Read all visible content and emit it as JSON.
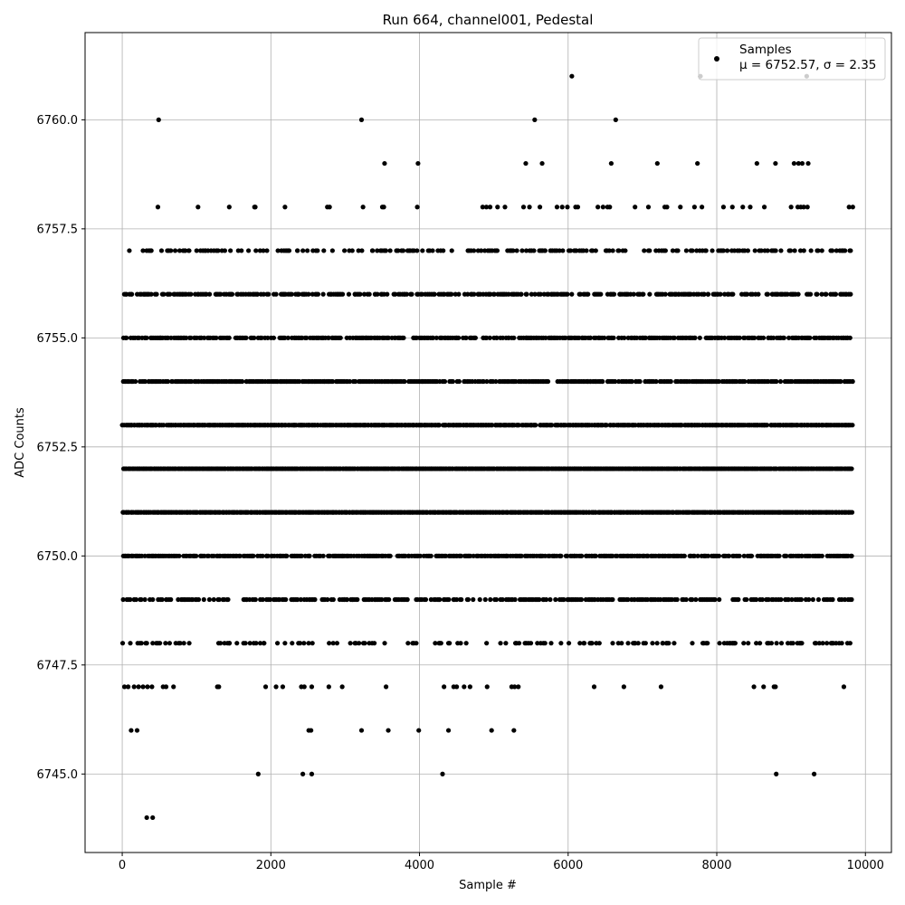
{
  "chart_data": {
    "type": "scatter",
    "title": "Run 664, channel001, Pedestal",
    "xlabel": "Sample #",
    "ylabel": "ADC Counts",
    "xlim": [
      -500,
      10350
    ],
    "ylim": [
      6743.2,
      6762.0
    ],
    "xticks": [
      0,
      2000,
      4000,
      6000,
      8000,
      10000
    ],
    "xtick_labels": [
      "0",
      "2000",
      "4000",
      "6000",
      "8000",
      "10000"
    ],
    "yticks": [
      6745.0,
      6747.5,
      6750.0,
      6752.5,
      6755.0,
      6757.5,
      6760.0
    ],
    "ytick_labels": [
      "6745.0",
      "6747.5",
      "6750.0",
      "6752.5",
      "6755.0",
      "6757.5",
      "6760.0"
    ],
    "grid": true,
    "legend_position": "top-right",
    "series": [
      {
        "name": "Samples",
        "label_line2": "μ = 6752.57, σ = 2.35",
        "color": "#000000",
        "sample_count": 9830,
        "points": [
          [
            330,
            6744
          ],
          [
            410,
            6744
          ],
          [
            1830,
            6745
          ],
          [
            2430,
            6745
          ],
          [
            2550,
            6745
          ],
          [
            4310,
            6745
          ],
          [
            8800,
            6745
          ],
          [
            9310,
            6745
          ],
          [
            120,
            6746
          ],
          [
            200,
            6746
          ],
          [
            2510,
            6746
          ],
          [
            2540,
            6746
          ],
          [
            3220,
            6746
          ],
          [
            3580,
            6746
          ],
          [
            3990,
            6746
          ],
          [
            4390,
            6746
          ],
          [
            4970,
            6746
          ],
          [
            5270,
            6746
          ],
          [
            490,
            6760
          ],
          [
            3220,
            6760
          ],
          [
            5550,
            6760
          ],
          [
            6640,
            6760
          ],
          [
            6050,
            6761
          ],
          [
            7780,
            6761
          ],
          [
            9210,
            6761
          ],
          [
            3530,
            6759
          ],
          [
            3980,
            6759
          ],
          [
            5430,
            6759
          ],
          [
            5650,
            6759
          ],
          [
            6580,
            6759
          ],
          [
            7200,
            6759
          ],
          [
            7740,
            6759
          ],
          [
            8540,
            6759
          ],
          [
            8790,
            6759
          ],
          [
            9040,
            6759
          ],
          [
            9100,
            6759
          ],
          [
            9150,
            6759
          ],
          [
            9230,
            6759
          ],
          [
            30,
            6747
          ],
          [
            80,
            6747
          ],
          [
            160,
            6747
          ],
          [
            220,
            6747
          ],
          [
            280,
            6747
          ],
          [
            340,
            6747
          ],
          [
            400,
            6747
          ],
          [
            550,
            6747
          ],
          [
            590,
            6747
          ],
          [
            690,
            6747
          ],
          [
            1280,
            6747
          ],
          [
            1300,
            6747
          ],
          [
            1930,
            6747
          ],
          [
            2070,
            6747
          ],
          [
            2160,
            6747
          ],
          [
            2410,
            6747
          ],
          [
            2450,
            6747
          ],
          [
            2550,
            6747
          ],
          [
            2780,
            6747
          ],
          [
            2960,
            6747
          ],
          [
            3550,
            6747
          ],
          [
            4330,
            6747
          ],
          [
            4460,
            6747
          ],
          [
            4500,
            6747
          ],
          [
            4600,
            6747
          ],
          [
            4680,
            6747
          ],
          [
            4910,
            6747
          ],
          [
            5240,
            6747
          ],
          [
            5280,
            6747
          ],
          [
            5330,
            6747
          ],
          [
            6350,
            6747
          ],
          [
            6750,
            6747
          ],
          [
            7250,
            6747
          ],
          [
            8500,
            6747
          ],
          [
            8630,
            6747
          ],
          [
            8770,
            6747
          ],
          [
            8790,
            6747
          ],
          [
            9710,
            6747
          ],
          [
            480,
            6758
          ],
          [
            1020,
            6758
          ],
          [
            1440,
            6758
          ],
          [
            1780,
            6758
          ],
          [
            1790,
            6758
          ],
          [
            2190,
            6758
          ],
          [
            2760,
            6758
          ],
          [
            2790,
            6758
          ],
          [
            3240,
            6758
          ],
          [
            3500,
            6758
          ],
          [
            3520,
            6758
          ],
          [
            3970,
            6758
          ],
          [
            4850,
            6758
          ],
          [
            4900,
            6758
          ],
          [
            4950,
            6758
          ],
          [
            5050,
            6758
          ],
          [
            5150,
            6758
          ],
          [
            5400,
            6758
          ],
          [
            5480,
            6758
          ],
          [
            5620,
            6758
          ],
          [
            5850,
            6758
          ],
          [
            5920,
            6758
          ],
          [
            5990,
            6758
          ],
          [
            6100,
            6758
          ],
          [
            6130,
            6758
          ],
          [
            6400,
            6758
          ],
          [
            6470,
            6758
          ],
          [
            6530,
            6758
          ],
          [
            6560,
            6758
          ],
          [
            6900,
            6758
          ],
          [
            7080,
            6758
          ],
          [
            7300,
            6758
          ],
          [
            7330,
            6758
          ],
          [
            7510,
            6758
          ],
          [
            7700,
            6758
          ],
          [
            7800,
            6758
          ],
          [
            8090,
            6758
          ],
          [
            8210,
            6758
          ],
          [
            8350,
            6758
          ],
          [
            8450,
            6758
          ],
          [
            8640,
            6758
          ],
          [
            9000,
            6758
          ],
          [
            9090,
            6758
          ],
          [
            9130,
            6758
          ],
          [
            9170,
            6758
          ],
          [
            9220,
            6758
          ],
          [
            9780,
            6758
          ],
          [
            9830,
            6758
          ]
        ]
      }
    ]
  }
}
